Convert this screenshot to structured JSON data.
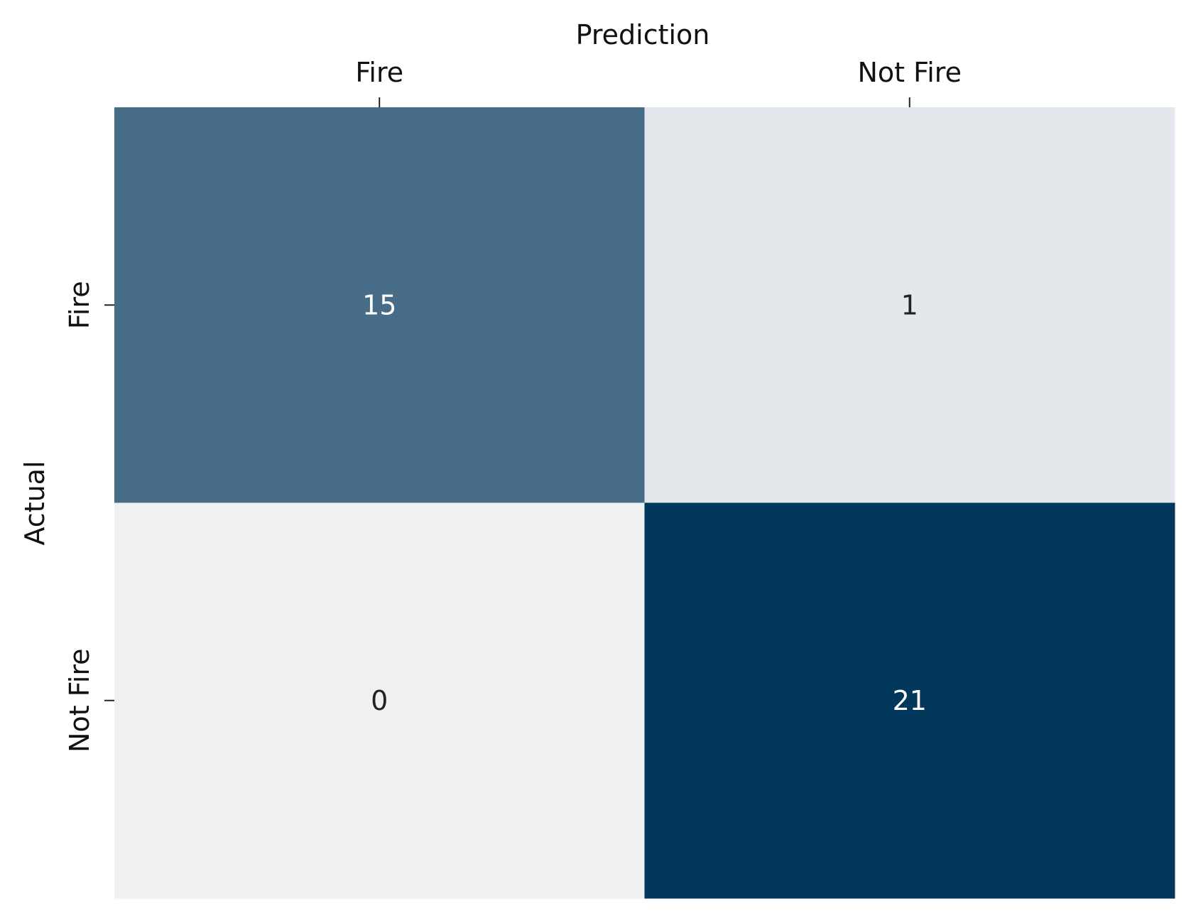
{
  "chart_data": {
    "type": "heatmap",
    "xlabel": "Prediction",
    "ylabel": "Actual",
    "x_categories": [
      "Fire",
      "Not Fire"
    ],
    "y_categories": [
      "Fire",
      "Not Fire"
    ],
    "values": [
      [
        15,
        1
      ],
      [
        0,
        21
      ]
    ],
    "colormap": {
      "low": "#eff0f2",
      "high": "#02375c"
    },
    "text_colors": {
      "on_dark": "#ffffff",
      "on_light": "#222222"
    },
    "colorbar": false,
    "x_axis_position": "top"
  }
}
